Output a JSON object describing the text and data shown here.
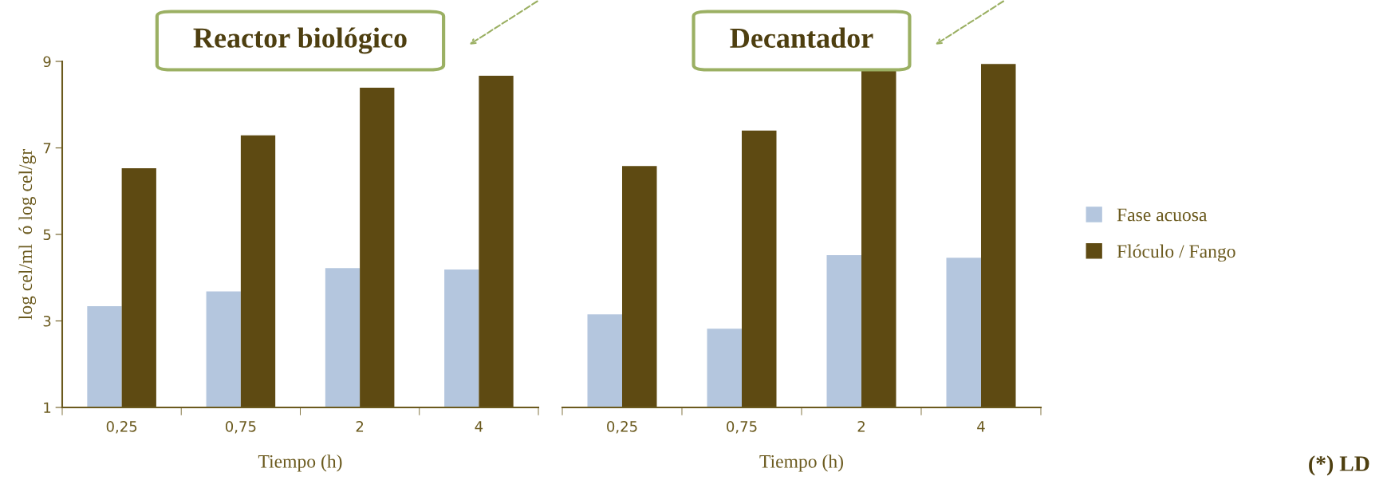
{
  "chart_data": [
    {
      "type": "bar",
      "title": "Reactor biológico",
      "xlabel": "Tiempo (h)",
      "ylabel": "log cel/ml  ó log cel/gr",
      "categories": [
        "0,25",
        "0,75",
        "2",
        "4"
      ],
      "series": [
        {
          "color": "#b4c6de",
          "values": [
            3.34,
            3.68,
            4.22,
            4.19
          ]
        },
        {
          "color": "#5e4a12",
          "values": [
            6.53,
            7.29,
            8.39,
            8.67
          ]
        }
      ],
      "ylim": [
        1,
        9
      ],
      "yticks": [
        1,
        3,
        5,
        7,
        9
      ],
      "grid": false
    },
    {
      "type": "bar",
      "title": "Decantador",
      "xlabel": "Tiempo (h)",
      "categories": [
        "0,25",
        "0,75",
        "2",
        "4"
      ],
      "series": [
        {
          "name": "Fase acuosa",
          "color": "#b4c6de",
          "values": [
            3.15,
            2.82,
            4.52,
            4.46
          ]
        },
        {
          "name": "Flóculo / Fango",
          "color": "#5e4a12",
          "values": [
            6.58,
            7.4,
            8.8,
            8.94
          ]
        }
      ],
      "ylim": [
        1,
        9
      ],
      "tick_labels": "x",
      "grid": false,
      "legend": "right",
      "annotations": [
        "(*) LD"
      ]
    }
  ]
}
